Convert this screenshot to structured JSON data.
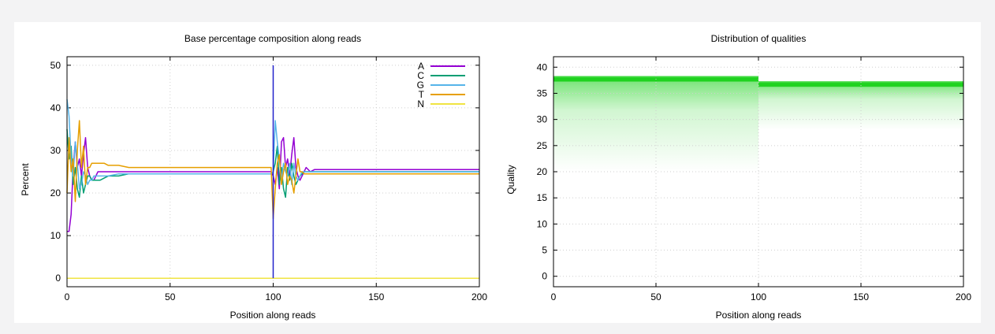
{
  "chart_data": [
    {
      "type": "line",
      "title": "Base percentage composition along reads",
      "xlabel": "Position along reads",
      "ylabel": "Percent",
      "xlim": [
        0,
        200
      ],
      "ylim": [
        -2,
        52
      ],
      "xticks": [
        0,
        50,
        100,
        150,
        200
      ],
      "yticks": [
        0,
        10,
        20,
        30,
        40,
        50
      ],
      "grid": true,
      "legend_position": "top-right",
      "vertical_marker": {
        "x": 100,
        "y_from": 0,
        "y_to": 50,
        "color": "#2222cc"
      },
      "series": [
        {
          "name": "A",
          "color": "#9400d3",
          "x": [
            0,
            1,
            2,
            3,
            4,
            5,
            6,
            7,
            8,
            9,
            10,
            11,
            12,
            13,
            14,
            15,
            16,
            18,
            20,
            25,
            30,
            40,
            50,
            60,
            70,
            80,
            90,
            99,
            100,
            101,
            102,
            103,
            104,
            105,
            106,
            107,
            108,
            109,
            110,
            111,
            112,
            113,
            114,
            115,
            116,
            118,
            120,
            130,
            140,
            150,
            160,
            170,
            180,
            190,
            200
          ],
          "y": [
            11,
            11,
            15,
            26,
            32,
            26,
            28,
            24,
            29,
            33,
            26,
            24,
            23,
            23,
            24,
            25,
            25,
            25,
            25,
            25,
            25,
            25,
            25,
            25,
            25,
            25,
            25,
            25,
            24,
            22,
            26,
            21,
            32,
            33,
            26,
            28,
            24,
            29,
            33,
            26,
            24,
            23,
            24,
            25,
            26,
            25,
            25.5,
            25.5,
            25.5,
            25.5,
            25.5,
            25.5,
            25.5,
            25.5,
            25.5
          ]
        },
        {
          "name": "C",
          "color": "#009e73",
          "x": [
            0,
            1,
            2,
            3,
            4,
            5,
            6,
            7,
            8,
            9,
            10,
            11,
            12,
            13,
            14,
            15,
            16,
            18,
            20,
            25,
            30,
            40,
            50,
            60,
            70,
            80,
            90,
            99,
            100,
            101,
            102,
            103,
            104,
            105,
            106,
            107,
            108,
            109,
            110,
            111,
            112,
            113,
            114,
            115,
            116,
            118,
            120,
            130,
            140,
            150,
            160,
            170,
            180,
            190,
            200
          ],
          "y": [
            35,
            28,
            31,
            22,
            26,
            21,
            19,
            24,
            20,
            22,
            24,
            24,
            23,
            23,
            23,
            23,
            23,
            23.5,
            24,
            24,
            24.5,
            24.5,
            24.5,
            24.5,
            24.5,
            24.5,
            24.5,
            24.5,
            25,
            27,
            31,
            22,
            26,
            21,
            19,
            26,
            23,
            27,
            24,
            22,
            23,
            24,
            24.5,
            25,
            25,
            25,
            25,
            25,
            25,
            25,
            25,
            25,
            25,
            25,
            25
          ]
        },
        {
          "name": "G",
          "color": "#56b4e9",
          "x": [
            0,
            1,
            2,
            3,
            4,
            5,
            6,
            7,
            8,
            9,
            10,
            11,
            12,
            13,
            14,
            15,
            16,
            18,
            20,
            25,
            30,
            40,
            50,
            60,
            70,
            80,
            90,
            99,
            100,
            101,
            102,
            103,
            104,
            105,
            106,
            107,
            108,
            109,
            110,
            111,
            112,
            113,
            114,
            115,
            116,
            118,
            120,
            130,
            140,
            150,
            160,
            170,
            180,
            190,
            200
          ],
          "y": [
            42,
            38,
            28,
            24,
            32,
            27,
            21,
            22,
            25,
            24,
            22,
            23,
            23,
            24,
            24,
            24,
            24,
            24,
            24,
            24.5,
            24.5,
            24.5,
            24.5,
            24.5,
            24.5,
            24.5,
            24.5,
            24.5,
            25,
            37,
            32,
            28,
            23,
            27,
            25,
            24,
            27,
            22,
            27,
            24,
            23,
            24,
            25,
            25,
            25,
            25,
            25,
            25,
            25,
            25,
            25,
            25,
            25,
            25,
            25
          ]
        },
        {
          "name": "T",
          "color": "#e69f00",
          "x": [
            0,
            1,
            2,
            3,
            4,
            5,
            6,
            7,
            8,
            9,
            10,
            11,
            12,
            13,
            14,
            15,
            16,
            18,
            20,
            25,
            30,
            40,
            50,
            60,
            70,
            80,
            90,
            99,
            100,
            101,
            102,
            103,
            104,
            105,
            106,
            107,
            108,
            109,
            110,
            111,
            112,
            113,
            114,
            115,
            116,
            118,
            120,
            130,
            140,
            150,
            160,
            170,
            180,
            190,
            200
          ],
          "y": [
            20,
            33,
            25,
            28,
            18,
            30,
            37,
            26,
            31,
            22,
            26,
            26,
            27,
            27,
            27,
            27,
            27,
            27,
            26.5,
            26.5,
            26,
            26,
            26,
            26,
            26,
            26,
            26,
            26,
            14,
            21,
            27,
            29,
            22,
            25,
            27,
            22,
            24,
            23,
            20,
            24,
            28,
            25,
            25,
            24.5,
            24.5,
            24.5,
            24.5,
            24.5,
            24.5,
            24.5,
            24.5,
            24.5,
            24.5,
            24.5,
            24.5
          ]
        },
        {
          "name": "N",
          "color": "#f0e442",
          "x": [
            0,
            200
          ],
          "y": [
            0,
            0
          ]
        }
      ]
    },
    {
      "type": "heatmap",
      "title": "Distribution of qualities",
      "xlabel": "Position along reads",
      "ylabel": "Quality",
      "xlim": [
        0,
        200
      ],
      "ylim": [
        -2,
        42
      ],
      "xticks": [
        0,
        50,
        100,
        150,
        200
      ],
      "yticks": [
        0,
        5,
        10,
        15,
        20,
        25,
        30,
        35,
        40
      ],
      "grid": true,
      "color": "#00cc00",
      "segments": [
        {
          "x_start": 0,
          "x_end": 100,
          "peak_quality": 38,
          "fade_to_quality": 20
        },
        {
          "x_start": 100,
          "x_end": 200,
          "peak_quality": 37,
          "fade_to_quality": 28
        }
      ]
    }
  ]
}
